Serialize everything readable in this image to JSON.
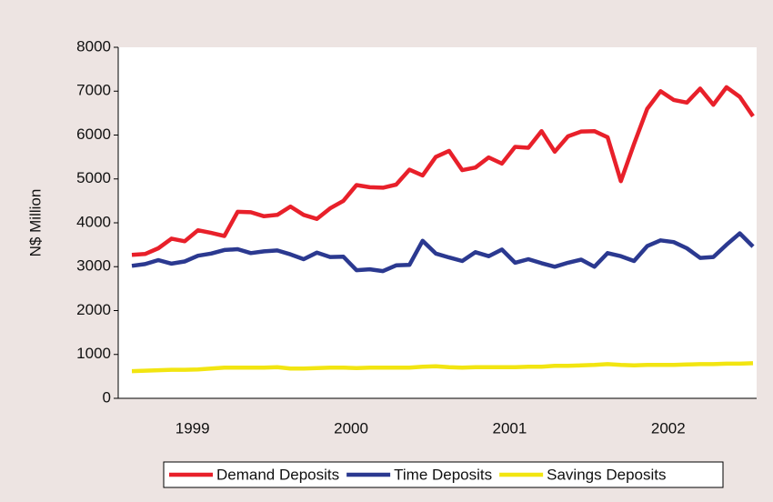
{
  "chart_data": {
    "type": "line",
    "y_label": "N$ Million",
    "categories": [
      null,
      null,
      null,
      null,
      null,
      "1999",
      null,
      null,
      null,
      null,
      null,
      null,
      null,
      null,
      null,
      null,
      null,
      "2000",
      null,
      null,
      null,
      null,
      null,
      null,
      null,
      null,
      null,
      null,
      null,
      "2001",
      null,
      null,
      null,
      null,
      null,
      null,
      null,
      null,
      null,
      null,
      null,
      "2002",
      null,
      null,
      null,
      null,
      null,
      null
    ],
    "ylim": [
      0,
      8000
    ],
    "yticks": [
      0,
      1000,
      2000,
      3000,
      4000,
      5000,
      6000,
      7000,
      8000
    ],
    "legend": "bottom",
    "series": [
      {
        "name": "Demand Deposits",
        "color": "#e8202a",
        "values": [
          3270,
          3290,
          3420,
          3640,
          3580,
          3830,
          3770,
          3700,
          4250,
          4240,
          4150,
          4180,
          4370,
          4180,
          4090,
          4330,
          4500,
          4860,
          4810,
          4800,
          4870,
          5210,
          5080,
          5500,
          5640,
          5200,
          5260,
          5490,
          5350,
          5730,
          5710,
          6090,
          5620,
          5970,
          6080,
          6090,
          5950,
          4950,
          5800,
          6600,
          7000,
          6800,
          6740,
          7060,
          6690,
          7090,
          6870,
          6430
        ]
      },
      {
        "name": "Time  Deposits",
        "color": "#2b3990",
        "values": [
          3020,
          3060,
          3150,
          3070,
          3120,
          3250,
          3300,
          3380,
          3400,
          3310,
          3350,
          3370,
          3280,
          3170,
          3320,
          3220,
          3230,
          2920,
          2940,
          2900,
          3030,
          3040,
          3590,
          3300,
          3210,
          3130,
          3330,
          3240,
          3390,
          3090,
          3170,
          3080,
          3000,
          3090,
          3160,
          3000,
          3310,
          3240,
          3130,
          3470,
          3600,
          3560,
          3420,
          3200,
          3220,
          3500,
          3760,
          3460
        ]
      },
      {
        "name": "Savings Deposits",
        "color": "#f2e511",
        "values": [
          620,
          630,
          640,
          650,
          650,
          660,
          680,
          700,
          700,
          700,
          700,
          710,
          680,
          680,
          690,
          700,
          700,
          690,
          700,
          700,
          700,
          700,
          720,
          730,
          710,
          700,
          710,
          710,
          710,
          710,
          720,
          720,
          740,
          740,
          750,
          760,
          780,
          760,
          750,
          760,
          760,
          760,
          770,
          780,
          780,
          790,
          790,
          800
        ]
      }
    ]
  }
}
